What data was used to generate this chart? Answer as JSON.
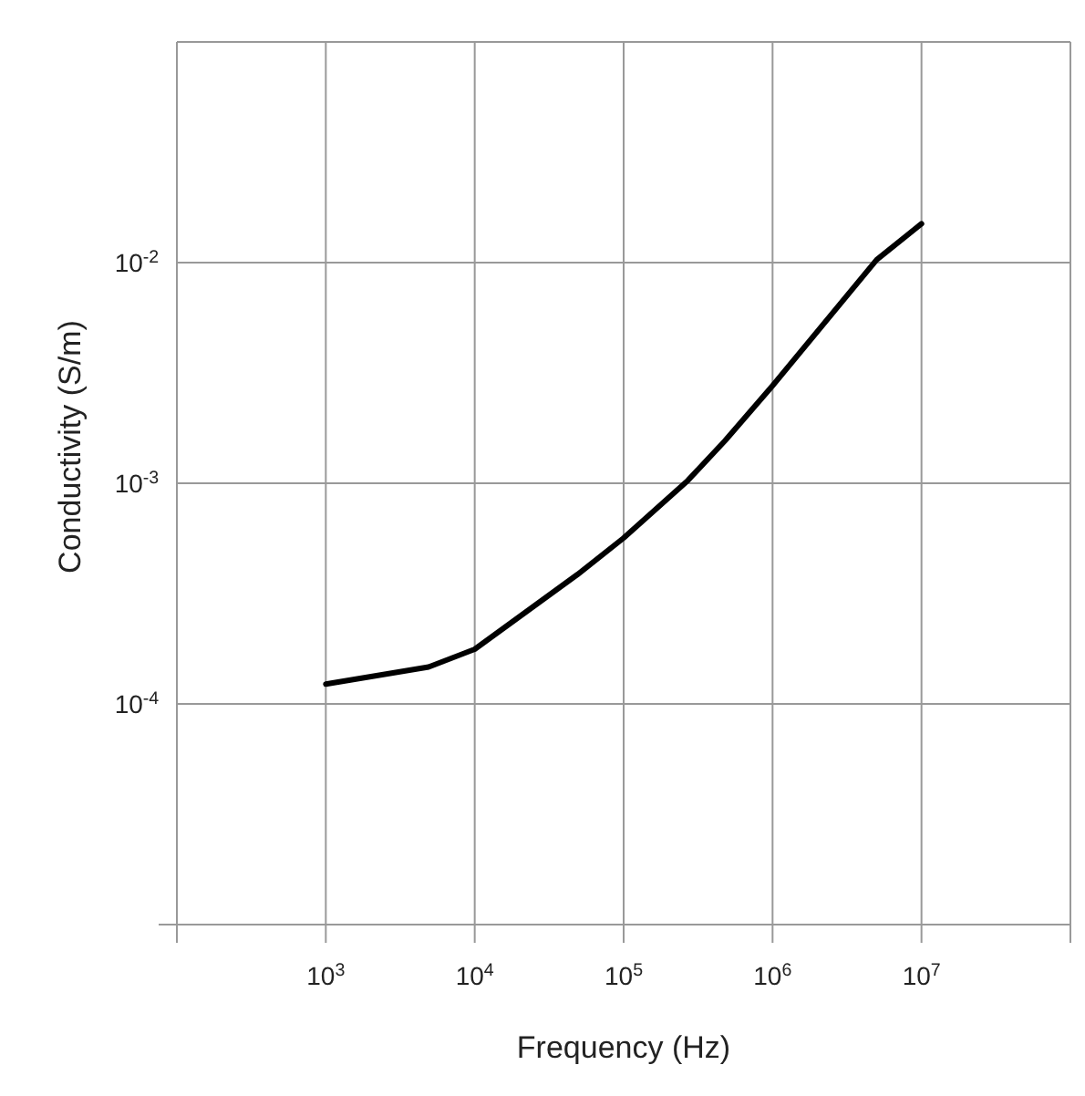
{
  "chart_data": {
    "type": "line",
    "xlabel": "Frequency (Hz)",
    "ylabel": "Conductivity (S/m)",
    "log": "xy",
    "grid": true,
    "marker": "none",
    "line_style": "solid",
    "xlim": [
      100,
      100000000
    ],
    "ylim": [
      1e-05,
      0.1
    ],
    "xticks": [
      {
        "value": 100,
        "label": null
      },
      {
        "value": 1000,
        "label": "10$^{3}$"
      },
      {
        "value": 10000,
        "label": "10$^{4}$"
      },
      {
        "value": 100000,
        "label": "10$^{5}$"
      },
      {
        "value": 1000000,
        "label": "10$^{6}$"
      },
      {
        "value": 10000000,
        "label": "10$^{7}$"
      },
      {
        "value": 100000000,
        "label": null
      }
    ],
    "yticks": [
      {
        "value": 1e-05,
        "label": null
      },
      {
        "value": 0.0001,
        "label": "10$^{-4}$"
      },
      {
        "value": 0.001,
        "label": "10$^{-3}$"
      },
      {
        "value": 0.01,
        "label": "10$^{-2}$"
      },
      {
        "value": 0.1,
        "label": null
      }
    ],
    "series": [
      {
        "color": "#000000",
        "x": [
          1000,
          4900,
          10000,
          49000,
          100000,
          270000,
          480000,
          1000000,
          5000000,
          10000000
        ],
        "values": [
          0.000123,
          0.000147,
          0.000177,
          0.000386,
          0.000565,
          0.00103,
          0.00156,
          0.00277,
          0.0103,
          0.015
        ]
      }
    ]
  }
}
